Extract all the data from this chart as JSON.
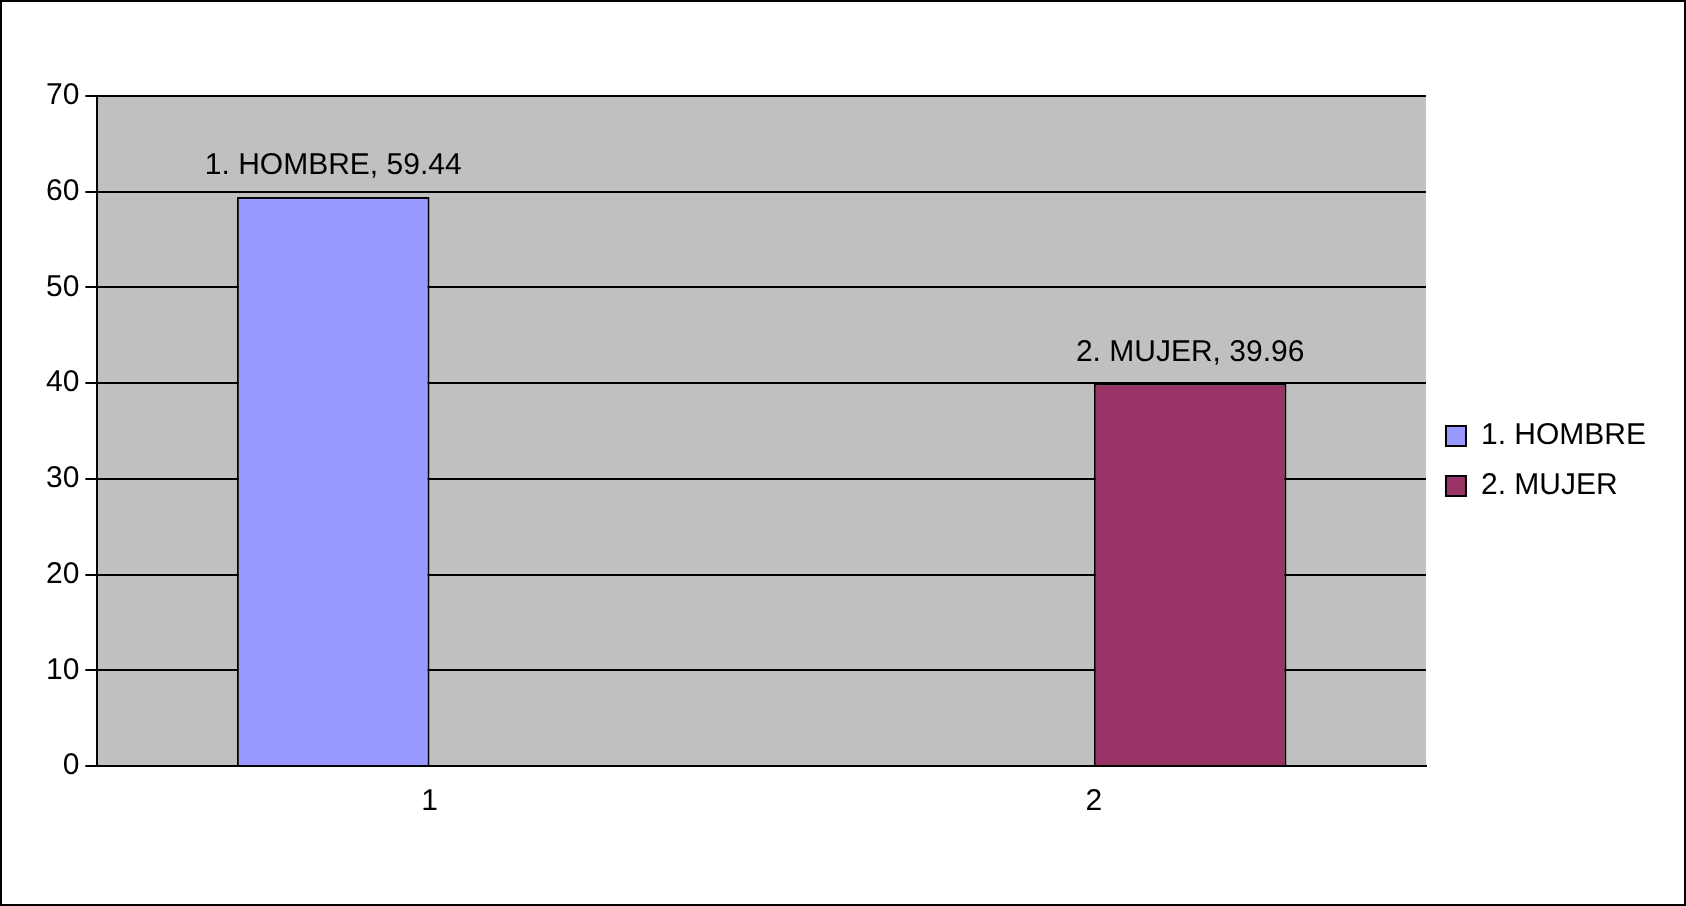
{
  "chart_data": {
    "type": "bar",
    "categories": [
      "1",
      "2"
    ],
    "series": [
      {
        "name": "1. HOMBRE",
        "color": "#9999ff",
        "values": [
          59.44,
          null
        ],
        "value_labels": [
          "1. HOMBRE, 59.44",
          null
        ]
      },
      {
        "name": "2. MUJER",
        "color": "#993366",
        "values": [
          null,
          39.96
        ],
        "value_labels": [
          null,
          "2. MUJER, 39.96"
        ]
      }
    ],
    "ylim": [
      0,
      70
    ],
    "yticks": [
      0,
      10,
      20,
      30,
      40,
      50,
      60,
      70
    ],
    "grid": "y",
    "legend": "right"
  }
}
